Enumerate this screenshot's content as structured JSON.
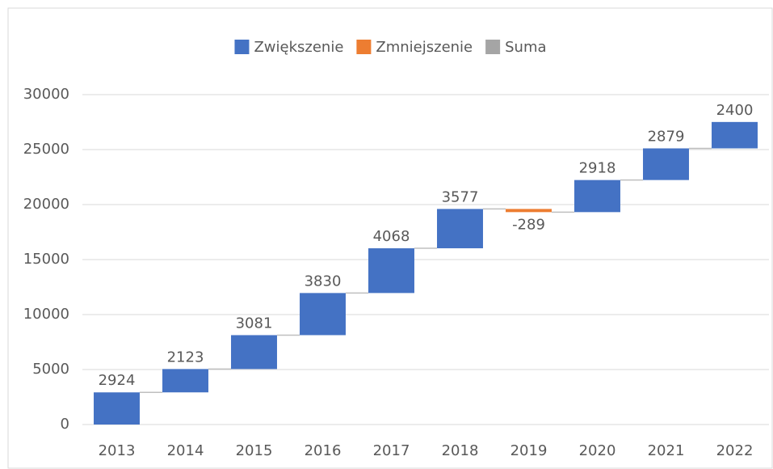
{
  "chart_data": {
    "type": "waterfall",
    "categories": [
      "2013",
      "2014",
      "2015",
      "2016",
      "2017",
      "2018",
      "2019",
      "2020",
      "2021",
      "2022"
    ],
    "values": [
      2924,
      2123,
      3081,
      3830,
      4068,
      3577,
      -289,
      2918,
      2879,
      2400
    ],
    "legend": [
      {
        "name": "Zwiększenie",
        "color": "#4472c4"
      },
      {
        "name": "Zmniejszenie",
        "color": "#ed7d31"
      },
      {
        "name": "Suma",
        "color": "#a5a5a5"
      }
    ],
    "increase_color": "#4472c4",
    "decrease_color": "#ed7d31",
    "ylim": [
      0,
      30000
    ],
    "yticks": [
      0,
      5000,
      10000,
      15000,
      20000,
      25000,
      30000
    ],
    "grid": true
  }
}
